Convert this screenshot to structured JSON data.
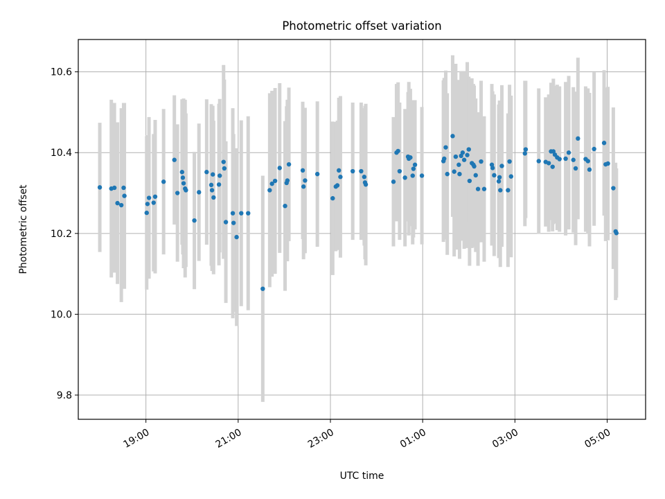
{
  "chart_data": {
    "type": "scatter",
    "title": "Photometric offset variation",
    "xlabel": "UTC time",
    "ylabel": "Photometric offset",
    "x_unit": "UTC time (hours, night starting 18:00, wraps past 24:00)",
    "xlim": [
      "17:32",
      "05:50"
    ],
    "ylim": [
      9.74,
      10.68
    ],
    "x_ticks": [
      "19:00",
      "21:00",
      "23:00",
      "01:00",
      "03:00",
      "05:00"
    ],
    "y_ticks": [
      "9.8",
      "10.0",
      "10.2",
      "10.4",
      "10.6"
    ],
    "grid": true,
    "legend": "none",
    "colors": {
      "point": "#1f77b4",
      "errorbar": "#d3d3d3",
      "grid": "#b0b0b0"
    },
    "series": [
      {
        "points": [
          [
            "18:00",
            10.314,
            0.16
          ],
          [
            "18:15",
            10.311,
            0.22
          ],
          [
            "18:19",
            10.313,
            0.21
          ],
          [
            "18:23",
            10.275,
            0.2
          ],
          [
            "18:28",
            10.27,
            0.24
          ],
          [
            "18:31",
            10.313,
            0.21
          ],
          [
            "18:32",
            10.293,
            0.23
          ],
          [
            "19:01",
            10.251,
            0.19
          ],
          [
            "19:02",
            10.273,
            0.17
          ],
          [
            "19:04",
            10.288,
            0.2
          ],
          [
            "19:10",
            10.276,
            0.17
          ],
          [
            "19:12",
            10.291,
            0.19
          ],
          [
            "19:23",
            10.328,
            0.18
          ],
          [
            "19:37",
            10.382,
            0.16
          ],
          [
            "19:41",
            10.3,
            0.17
          ],
          [
            "19:47",
            10.352,
            0.18
          ],
          [
            "19:48",
            10.338,
            0.19
          ],
          [
            "19:49",
            10.324,
            0.21
          ],
          [
            "19:51",
            10.311,
            0.22
          ],
          [
            "19:52",
            10.307,
            0.19
          ],
          [
            "20:03",
            10.232,
            0.17
          ],
          [
            "20:09",
            10.302,
            0.17
          ],
          [
            "20:19",
            10.352,
            0.18
          ],
          [
            "20:25",
            10.32,
            0.2
          ],
          [
            "20:26",
            10.307,
            0.2
          ],
          [
            "20:27",
            10.346,
            0.17
          ],
          [
            "20:28",
            10.289,
            0.19
          ],
          [
            "20:35",
            10.321,
            0.2
          ],
          [
            "20:36",
            10.343,
            0.19
          ],
          [
            "20:41",
            10.377,
            0.24
          ],
          [
            "20:42",
            10.361,
            0.22
          ],
          [
            "20:44",
            10.228,
            0.2
          ],
          [
            "20:53",
            10.25,
            0.26
          ],
          [
            "20:54",
            10.226,
            0.22
          ],
          [
            "20:58",
            10.191,
            0.22
          ],
          [
            "21:04",
            10.25,
            0.23
          ],
          [
            "21:13",
            10.25,
            0.24
          ],
          [
            "21:32",
            10.063,
            0.28
          ],
          [
            "21:41",
            10.307,
            0.24
          ],
          [
            "21:44",
            10.323,
            0.23
          ],
          [
            "21:48",
            10.33,
            0.23
          ],
          [
            "21:54",
            10.362,
            0.21
          ],
          [
            "22:01",
            10.268,
            0.21
          ],
          [
            "22:03",
            10.325,
            0.19
          ],
          [
            "22:04",
            10.331,
            0.2
          ],
          [
            "22:06",
            10.371,
            0.19
          ],
          [
            "22:24",
            10.356,
            0.17
          ],
          [
            "22:25",
            10.316,
            0.18
          ],
          [
            "22:27",
            10.331,
            0.18
          ],
          [
            "22:43",
            10.347,
            0.18
          ],
          [
            "23:03",
            10.287,
            0.19
          ],
          [
            "23:07",
            10.316,
            0.16
          ],
          [
            "23:09",
            10.319,
            0.16
          ],
          [
            "23:11",
            10.356,
            0.18
          ],
          [
            "23:13",
            10.34,
            0.2
          ],
          [
            "23:29",
            10.354,
            0.17
          ],
          [
            "23:40",
            10.354,
            0.17
          ],
          [
            "23:44",
            10.34,
            0.17
          ],
          [
            "23:45",
            10.326,
            0.19
          ],
          [
            "23:46",
            10.321,
            0.2
          ],
          [
            "00:22",
            10.328,
            0.16
          ],
          [
            "00:26",
            10.4,
            0.17
          ],
          [
            "00:28",
            10.404,
            0.17
          ],
          [
            "00:30",
            10.354,
            0.17
          ],
          [
            "00:37",
            10.338,
            0.17
          ],
          [
            "00:41",
            10.39,
            0.16
          ],
          [
            "00:42",
            10.385,
            0.19
          ],
          [
            "00:44",
            10.388,
            0.17
          ],
          [
            "00:47",
            10.343,
            0.17
          ],
          [
            "00:48",
            10.36,
            0.17
          ],
          [
            "00:50",
            10.37,
            0.16
          ],
          [
            "00:59",
            10.343,
            0.17
          ],
          [
            "01:27",
            10.379,
            0.2
          ],
          [
            "01:28",
            10.385,
            0.2
          ],
          [
            "01:30",
            10.413,
            0.19
          ],
          [
            "01:32",
            10.347,
            0.2
          ],
          [
            "01:39",
            10.441,
            0.2
          ],
          [
            "01:41",
            10.353,
            0.21
          ],
          [
            "01:43",
            10.39,
            0.23
          ],
          [
            "01:47",
            10.37,
            0.21
          ],
          [
            "01:48",
            10.347,
            0.21
          ],
          [
            "01:50",
            10.392,
            0.21
          ],
          [
            "01:52",
            10.4,
            0.19
          ],
          [
            "01:54",
            10.382,
            0.22
          ],
          [
            "01:58",
            10.394,
            0.23
          ],
          [
            "02:00",
            10.408,
            0.18
          ],
          [
            "02:01",
            10.33,
            0.21
          ],
          [
            "02:04",
            10.374,
            0.21
          ],
          [
            "02:06",
            10.37,
            0.2
          ],
          [
            "02:07",
            10.366,
            0.2
          ],
          [
            "02:09",
            10.344,
            0.19
          ],
          [
            "02:12",
            10.31,
            0.19
          ],
          [
            "02:16",
            10.378,
            0.2
          ],
          [
            "02:20",
            10.31,
            0.18
          ],
          [
            "02:30",
            10.37,
            0.2
          ],
          [
            "02:31",
            10.362,
            0.19
          ],
          [
            "02:33",
            10.344,
            0.2
          ],
          [
            "02:39",
            10.329,
            0.19
          ],
          [
            "02:40",
            10.339,
            0.19
          ],
          [
            "02:41",
            10.307,
            0.19
          ],
          [
            "02:43",
            10.367,
            0.2
          ],
          [
            "02:51",
            10.307,
            0.19
          ],
          [
            "02:53",
            10.378,
            0.19
          ],
          [
            "02:55",
            10.341,
            0.2
          ],
          [
            "03:13",
            10.398,
            0.18
          ],
          [
            "03:14",
            10.408,
            0.17
          ],
          [
            "03:31",
            10.379,
            0.18
          ],
          [
            "03:40",
            10.377,
            0.16
          ],
          [
            "03:44",
            10.374,
            0.17
          ],
          [
            "03:47",
            10.403,
            0.17
          ],
          [
            "03:49",
            10.365,
            0.16
          ],
          [
            "03:50",
            10.403,
            0.18
          ],
          [
            "03:52",
            10.395,
            0.17
          ],
          [
            "03:55",
            10.388,
            0.18
          ],
          [
            "03:58",
            10.384,
            0.18
          ],
          [
            "04:06",
            10.385,
            0.19
          ],
          [
            "04:10",
            10.4,
            0.19
          ],
          [
            "04:16",
            10.382,
            0.18
          ],
          [
            "04:19",
            10.361,
            0.19
          ],
          [
            "04:22",
            10.435,
            0.2
          ],
          [
            "04:32",
            10.384,
            0.18
          ],
          [
            "04:35",
            10.379,
            0.18
          ],
          [
            "04:37",
            10.358,
            0.19
          ],
          [
            "04:43",
            10.409,
            0.19
          ],
          [
            "04:56",
            10.424,
            0.18
          ],
          [
            "04:58",
            10.371,
            0.19
          ],
          [
            "05:01",
            10.373,
            0.19
          ],
          [
            "05:08",
            10.312,
            0.2
          ],
          [
            "05:11",
            10.205,
            0.17
          ],
          [
            "05:12",
            10.201,
            0.16
          ]
        ]
      }
    ]
  }
}
